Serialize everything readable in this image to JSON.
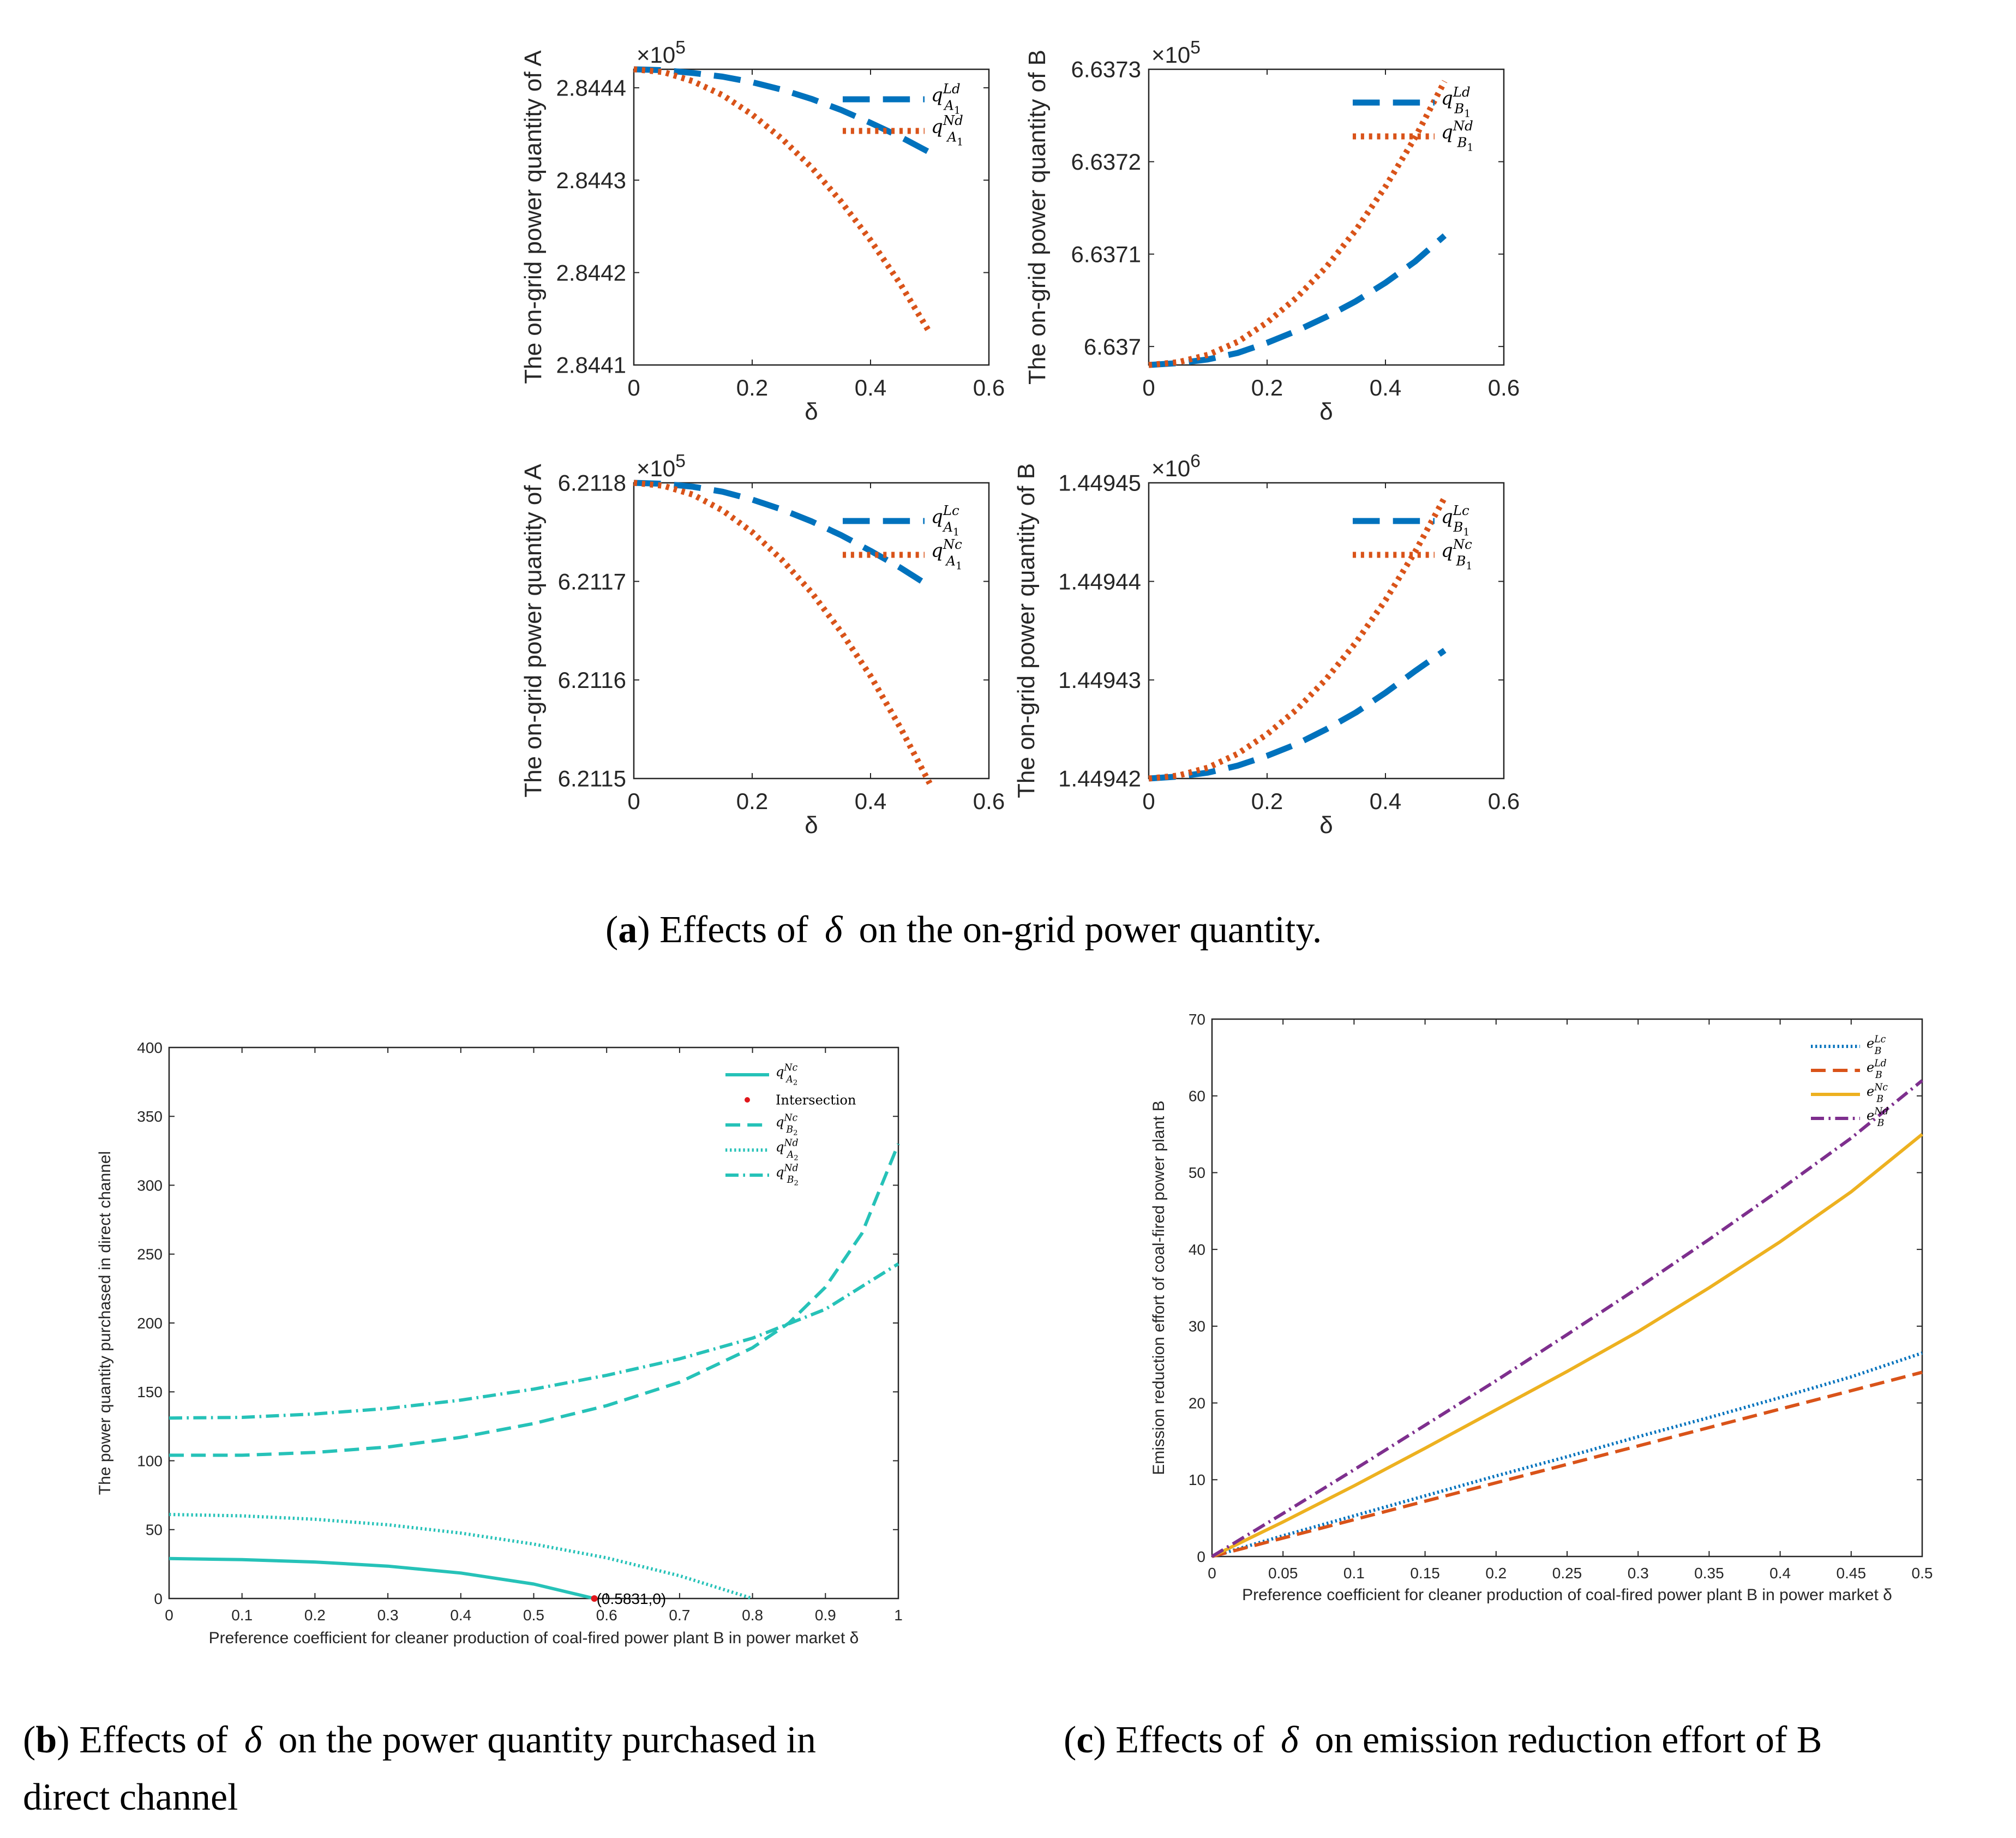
{
  "captions": {
    "a": {
      "label": "a",
      "pre": "Effects of",
      "symbol": "δ",
      "post": "on the on-grid power quantity."
    },
    "b": {
      "label": "b",
      "pre": "Effects of",
      "symbol": "δ",
      "post": "on the power quantity purchased in",
      "line2": "direct channel"
    },
    "c": {
      "label": "c",
      "pre": "Effects of",
      "symbol": "δ",
      "post": "on emission reduction effort of B"
    }
  },
  "colors": {
    "blue": "#0072BD",
    "orange": "#D95319",
    "yellow": "#EDB120",
    "purple": "#7E2F8E",
    "teal": "#26C2B8",
    "red": "#E0161B",
    "axis": "#262626"
  },
  "chart_data": [
    {
      "id": "a1",
      "type": "line",
      "ylabel": "The on-grid power quantity of A",
      "xlabel": "δ",
      "exponent_base": "×10",
      "exponent_power": "5",
      "xlim": [
        0,
        0.6
      ],
      "ylim": [
        2.8441,
        2.84442
      ],
      "xticks": [
        0,
        0.2,
        0.4,
        0.6
      ],
      "xtick_labels": [
        "0",
        "0.2",
        "0.4",
        "0.6"
      ],
      "yticks": [
        2.8441,
        2.8442,
        2.8443,
        2.8444
      ],
      "ytick_labels": [
        "2.8441",
        "2.8442",
        "2.8443",
        "2.8444"
      ],
      "legend_position": "top-right",
      "series": [
        {
          "name": "q^{Ld}_{A_1}",
          "base": "q",
          "sup": "Ld",
          "sub": "A",
          "subsub": "1",
          "style": "dashed",
          "color": "blue",
          "x": [
            0,
            0.05,
            0.1,
            0.15,
            0.2,
            0.25,
            0.3,
            0.35,
            0.4,
            0.45,
            0.5
          ],
          "y": [
            2.84442,
            2.844419,
            2.844416,
            2.844412,
            2.844406,
            2.844398,
            2.844388,
            2.844376,
            2.844362,
            2.844347,
            2.84433
          ]
        },
        {
          "name": "q^{Nd}_{A_1}",
          "base": "q",
          "sup": "Nd",
          "sub": "A",
          "subsub": "1",
          "style": "dotted",
          "color": "orange",
          "x": [
            0,
            0.05,
            0.1,
            0.15,
            0.2,
            0.25,
            0.3,
            0.35,
            0.4,
            0.45,
            0.5
          ],
          "y": [
            2.84442,
            2.844417,
            2.844407,
            2.844392,
            2.844371,
            2.844345,
            2.844314,
            2.844277,
            2.844235,
            2.844188,
            2.844135
          ]
        }
      ]
    },
    {
      "id": "a2",
      "type": "line",
      "ylabel": "The on-grid power quantity of B",
      "xlabel": "δ",
      "exponent_base": "×10",
      "exponent_power": "5",
      "xlim": [
        0,
        0.6
      ],
      "ylim": [
        6.63698,
        6.6373
      ],
      "xticks": [
        0,
        0.2,
        0.4,
        0.6
      ],
      "xtick_labels": [
        "0",
        "0.2",
        "0.4",
        "0.6"
      ],
      "yticks": [
        6.637,
        6.6371,
        6.6372,
        6.6373
      ],
      "ytick_labels": [
        "6.637",
        "6.6371",
        "6.6372",
        "6.6373"
      ],
      "legend_position": "top-right",
      "series": [
        {
          "name": "q^{Ld}_{B_1}",
          "base": "q",
          "sup": "Ld",
          "sub": "B",
          "subsub": "1",
          "style": "dashed",
          "color": "blue",
          "x": [
            0,
            0.05,
            0.1,
            0.15,
            0.2,
            0.25,
            0.3,
            0.35,
            0.4,
            0.45,
            0.5
          ],
          "y": [
            6.63698,
            6.636982,
            6.636986,
            6.636993,
            6.637004,
            6.637017,
            6.637032,
            6.637049,
            6.637069,
            6.637092,
            6.63712
          ]
        },
        {
          "name": "q^{Nd}_{B_1}",
          "base": "q",
          "sup": "Nd",
          "sub": "B",
          "subsub": "1",
          "style": "dotted",
          "color": "orange",
          "x": [
            0,
            0.05,
            0.1,
            0.15,
            0.2,
            0.25,
            0.3,
            0.35,
            0.4,
            0.45,
            0.5
          ],
          "y": [
            6.63698,
            6.636983,
            6.636991,
            6.637005,
            6.637026,
            6.637053,
            6.637086,
            6.637126,
            6.637173,
            6.637226,
            6.637287
          ]
        }
      ]
    },
    {
      "id": "a3",
      "type": "line",
      "ylabel": "The on-grid power quantity of A",
      "xlabel": "δ",
      "exponent_base": "×10",
      "exponent_power": "5",
      "xlim": [
        0,
        0.6
      ],
      "ylim": [
        6.2115,
        6.2118
      ],
      "xticks": [
        0,
        0.2,
        0.4,
        0.6
      ],
      "xtick_labels": [
        "0",
        "0.2",
        "0.4",
        "0.6"
      ],
      "yticks": [
        6.2115,
        6.2116,
        6.2117,
        6.2118
      ],
      "ytick_labels": [
        "6.2115",
        "6.2116",
        "6.2117",
        "6.2118"
      ],
      "legend_position": "top-right",
      "series": [
        {
          "name": "q^{Lc}_{A_1}",
          "base": "q",
          "sup": "Lc",
          "sub": "A",
          "subsub": "1",
          "style": "dashed",
          "color": "blue",
          "x": [
            0,
            0.05,
            0.1,
            0.15,
            0.2,
            0.25,
            0.3,
            0.35,
            0.4,
            0.45,
            0.5
          ],
          "y": [
            6.2118,
            6.211799,
            6.211796,
            6.211791,
            6.211783,
            6.211773,
            6.211761,
            6.211747,
            6.211731,
            6.211714,
            6.211695
          ]
        },
        {
          "name": "q^{Nc}_{A_1}",
          "base": "q",
          "sup": "Nc",
          "sub": "A",
          "subsub": "1",
          "style": "dotted",
          "color": "orange",
          "x": [
            0,
            0.05,
            0.1,
            0.15,
            0.2,
            0.25,
            0.3,
            0.35,
            0.4,
            0.45,
            0.5
          ],
          "y": [
            6.2118,
            6.211797,
            6.211788,
            6.211772,
            6.21175,
            6.211722,
            6.211689,
            6.211649,
            6.211604,
            6.211552,
            6.211495
          ]
        }
      ]
    },
    {
      "id": "a4",
      "type": "line",
      "ylabel": "The on-grid power quantity of B",
      "xlabel": "δ",
      "exponent_base": "×10",
      "exponent_power": "6",
      "xlim": [
        0,
        0.6
      ],
      "ylim": [
        1.44942,
        1.44945
      ],
      "xticks": [
        0,
        0.2,
        0.4,
        0.6
      ],
      "xtick_labels": [
        "0",
        "0.2",
        "0.4",
        "0.6"
      ],
      "yticks": [
        1.44942,
        1.44943,
        1.44944,
        1.44945
      ],
      "ytick_labels": [
        "1.44942",
        "1.44943",
        "1.44944",
        "1.44945"
      ],
      "legend_position": "top-right",
      "series": [
        {
          "name": "q^{Lc}_{B_1}",
          "base": "q",
          "sup": "Lc",
          "sub": "B",
          "subsub": "1",
          "style": "dashed",
          "color": "blue",
          "x": [
            0,
            0.05,
            0.1,
            0.15,
            0.2,
            0.25,
            0.3,
            0.35,
            0.4,
            0.45,
            0.5
          ],
          "y": [
            1.44942,
            1.4494202,
            1.4494206,
            1.4494213,
            1.4494223,
            1.4494235,
            1.449425,
            1.4494267,
            1.4494287,
            1.4494309,
            1.449433
          ]
        },
        {
          "name": "q^{Nc}_{B_1}",
          "base": "q",
          "sup": "Nc",
          "sub": "B",
          "subsub": "1",
          "style": "dotted",
          "color": "orange",
          "x": [
            0,
            0.05,
            0.1,
            0.15,
            0.2,
            0.25,
            0.3,
            0.35,
            0.4,
            0.45,
            0.5
          ],
          "y": [
            1.44942,
            1.4494203,
            1.4494211,
            1.4494225,
            1.4494245,
            1.449427,
            1.4494301,
            1.4494338,
            1.4494381,
            1.449443,
            1.4494485
          ]
        }
      ]
    },
    {
      "id": "b",
      "type": "line",
      "title": "",
      "xlabel": "Preference coefficient for cleaner production of coal-fired power plant B in power market δ",
      "ylabel": "The power quantity purchased in direct channel",
      "xlim": [
        0,
        1
      ],
      "ylim": [
        0,
        400
      ],
      "xticks": [
        0,
        0.1,
        0.2,
        0.3,
        0.4,
        0.5,
        0.6,
        0.7,
        0.8,
        0.9,
        1
      ],
      "xtick_labels": [
        "0",
        "0.1",
        "0.2",
        "0.3",
        "0.4",
        "0.5",
        "0.6",
        "0.7",
        "0.8",
        "0.9",
        "1"
      ],
      "yticks": [
        0,
        50,
        100,
        150,
        200,
        250,
        300,
        350,
        400
      ],
      "ytick_labels": [
        "0",
        "50",
        "100",
        "150",
        "200",
        "250",
        "300",
        "350",
        "400"
      ],
      "legend_position": "top-right",
      "series": [
        {
          "name": "q^{Nc}_{A_2}",
          "base": "q",
          "sup": "Nc",
          "sub": "A",
          "subsub": "2",
          "style": "solid",
          "color": "teal",
          "x": [
            0,
            0.1,
            0.2,
            0.3,
            0.4,
            0.5,
            0.5831
          ],
          "y": [
            29,
            28.2,
            26.5,
            23.5,
            18.5,
            10.5,
            0
          ]
        },
        {
          "name": "Intersection",
          "label": "Intersection",
          "style": "point",
          "color": "red",
          "x": [
            0.5831
          ],
          "y": [
            0
          ],
          "annotation": "(0.5831,0)"
        },
        {
          "name": "q^{Nc}_{B_2}",
          "base": "q",
          "sup": "Nc",
          "sub": "B",
          "subsub": "2",
          "style": "dashed",
          "color": "teal",
          "x": [
            0,
            0.1,
            0.2,
            0.3,
            0.4,
            0.5,
            0.6,
            0.7,
            0.8,
            0.85,
            0.9,
            0.95,
            1
          ],
          "y": [
            104,
            104,
            106,
            110,
            117,
            127,
            140,
            157,
            182,
            200,
            226,
            265,
            330
          ]
        },
        {
          "name": "q^{Nd}_{A_2}",
          "base": "q",
          "sup": "Nd",
          "sub": "A",
          "subsub": "2",
          "style": "dotted",
          "color": "teal",
          "x": [
            0,
            0.1,
            0.2,
            0.3,
            0.4,
            0.5,
            0.6,
            0.7,
            0.8
          ],
          "y": [
            61,
            60,
            57.5,
            53.5,
            47.5,
            39.5,
            29.5,
            16.5,
            0
          ]
        },
        {
          "name": "q^{Nd}_{B_2}",
          "base": "q",
          "sup": "Nd",
          "sub": "B",
          "subsub": "2",
          "style": "dashdot",
          "color": "teal",
          "x": [
            0,
            0.1,
            0.2,
            0.3,
            0.4,
            0.5,
            0.6,
            0.7,
            0.8,
            0.9,
            1
          ],
          "y": [
            131,
            131.5,
            134,
            138,
            144,
            152,
            162,
            174,
            189,
            210,
            243
          ]
        }
      ]
    },
    {
      "id": "c",
      "type": "line",
      "title": "",
      "xlabel": "Preference coefficient for cleaner production of coal-fired power plant B in power market δ",
      "ylabel": "Emission reduction effort of coal-fired power plant B",
      "xlim": [
        0,
        0.5
      ],
      "ylim": [
        0,
        70
      ],
      "xticks": [
        0,
        0.05,
        0.1,
        0.15,
        0.2,
        0.25,
        0.3,
        0.35,
        0.4,
        0.45,
        0.5
      ],
      "xtick_labels": [
        "0",
        "0.05",
        "0.1",
        "0.15",
        "0.2",
        "0.25",
        "0.3",
        "0.35",
        "0.4",
        "0.45",
        "0.5"
      ],
      "yticks": [
        0,
        10,
        20,
        30,
        40,
        50,
        60,
        70
      ],
      "ytick_labels": [
        "0",
        "10",
        "20",
        "30",
        "40",
        "50",
        "60",
        "70"
      ],
      "legend_position": "top-right",
      "series": [
        {
          "name": "e^{Lc}_{B}",
          "base": "e",
          "sup": "Lc",
          "sub": "B",
          "style": "dotted",
          "color": "blue",
          "x": [
            0,
            0.05,
            0.1,
            0.15,
            0.2,
            0.25,
            0.3,
            0.35,
            0.4,
            0.45,
            0.5
          ],
          "y": [
            0,
            2.7,
            5.3,
            7.9,
            10.5,
            13,
            15.6,
            18.1,
            20.7,
            23.4,
            26.5
          ]
        },
        {
          "name": "e^{Ld}_{B}",
          "base": "e",
          "sup": "Ld",
          "sub": "B",
          "style": "dashed",
          "color": "orange",
          "x": [
            0,
            0.05,
            0.1,
            0.15,
            0.2,
            0.25,
            0.3,
            0.35,
            0.4,
            0.45,
            0.5
          ],
          "y": [
            0,
            2.4,
            4.8,
            7.2,
            9.6,
            12,
            14.4,
            16.8,
            19.2,
            21.6,
            24
          ]
        },
        {
          "name": "e^{Nc}_{B}",
          "base": "e",
          "sup": "Nc",
          "sub": "B",
          "style": "solid",
          "color": "yellow",
          "x": [
            0,
            0.05,
            0.1,
            0.15,
            0.2,
            0.25,
            0.3,
            0.35,
            0.4,
            0.45,
            0.5
          ],
          "y": [
            0,
            4.5,
            9.2,
            14.1,
            19.1,
            24.1,
            29.3,
            35,
            41,
            47.5,
            55
          ]
        },
        {
          "name": "e^{Nd}_{B}",
          "base": "e",
          "sup": "Nd",
          "sub": "B",
          "style": "dashdot",
          "color": "purple",
          "x": [
            0,
            0.05,
            0.1,
            0.15,
            0.2,
            0.25,
            0.3,
            0.35,
            0.4,
            0.45,
            0.5
          ],
          "y": [
            0,
            5.6,
            11.3,
            17.1,
            22.9,
            28.9,
            35,
            41.3,
            47.8,
            54.5,
            62
          ]
        }
      ]
    }
  ]
}
